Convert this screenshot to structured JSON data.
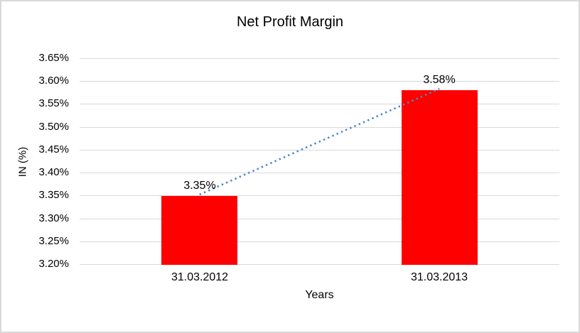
{
  "chart_data": {
    "type": "bar",
    "title": "Net Profit Margin",
    "categories": [
      "31.03.2012",
      "31.03.2013"
    ],
    "values": [
      3.35,
      3.58
    ],
    "value_labels": [
      "3.35%",
      "3.58%"
    ],
    "xlabel": "Years",
    "ylabel": "IN (%)",
    "ylim": [
      3.2,
      3.65
    ],
    "ytick_step": 0.05,
    "ytick_labels": [
      "3.65%",
      "3.60%",
      "3.55%",
      "3.50%",
      "3.45%",
      "3.40%",
      "3.35%",
      "3.30%",
      "3.25%",
      "3.20%"
    ],
    "grid": true,
    "legend": false,
    "bar_color": "#FF0000",
    "trendline": {
      "type": "linear",
      "line_style": "dotted",
      "color": "#4E87C8",
      "connects": [
        "31.03.2012",
        "31.03.2013"
      ]
    },
    "colors": {
      "gridline": "#D9D9D9",
      "border": "#D9D9D9",
      "text": "#000000",
      "background": "#FFFFFF"
    }
  }
}
